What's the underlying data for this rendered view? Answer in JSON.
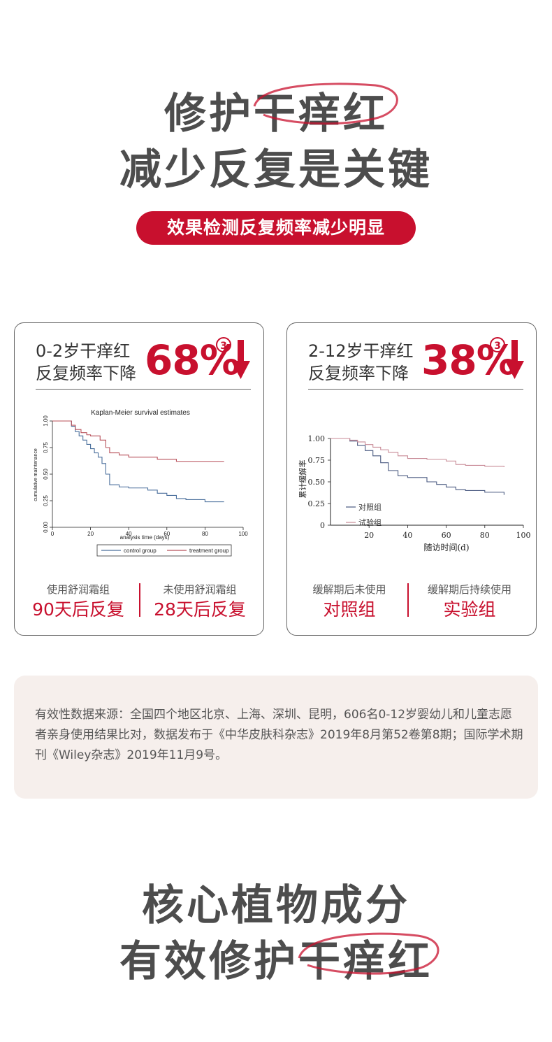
{
  "hero": {
    "line1": "修护干痒红",
    "line2": "减少反复是关键",
    "badge": "效果检测反复频率减少明显"
  },
  "cards": [
    {
      "head_line1": "0-2岁干痒红",
      "head_line2": "反复频率下降",
      "percent": "68%",
      "sup": "3",
      "foot_left_label": "使用舒润霜组",
      "foot_left_value": "90天后反复",
      "foot_right_label": "未使用舒润霜组",
      "foot_right_value": "28天后反复"
    },
    {
      "head_line1": "2-12岁干痒红",
      "head_line2": "反复频率下降",
      "percent": "38%",
      "sup": "3",
      "foot_left_label": "缓解期后未使用",
      "foot_left_value": "对照组",
      "foot_right_label": "缓解期后持续使用",
      "foot_right_value": "实验组"
    }
  ],
  "chart_data": [
    {
      "type": "line",
      "title": "Kaplan-Meier survival estimates",
      "xlabel": "analysis time (days)",
      "ylabel": "cumulative maintenance",
      "xlim": [
        0,
        100
      ],
      "ylim": [
        0,
        1
      ],
      "x_ticks": [
        "0",
        "20",
        "40",
        "60",
        "80",
        "100"
      ],
      "y_ticks": [
        "0.00",
        "0.25",
        "0.50",
        "0.75",
        "1.00"
      ],
      "legend_position": "bottom",
      "series": [
        {
          "name": "control group",
          "color": "#4a6f9c",
          "x": [
            0,
            8,
            10,
            12,
            14,
            16,
            18,
            20,
            22,
            24,
            26,
            28,
            30,
            35,
            40,
            50,
            55,
            60,
            65,
            70,
            80,
            90
          ],
          "y": [
            1.0,
            1.0,
            0.95,
            0.9,
            0.86,
            0.82,
            0.78,
            0.74,
            0.7,
            0.66,
            0.6,
            0.5,
            0.4,
            0.38,
            0.37,
            0.35,
            0.32,
            0.3,
            0.27,
            0.26,
            0.24,
            0.24
          ]
        },
        {
          "name": "treatment group",
          "color": "#b8505a",
          "x": [
            0,
            8,
            10,
            12,
            15,
            18,
            20,
            25,
            28,
            30,
            35,
            40,
            50,
            55,
            60,
            65,
            70,
            80,
            90
          ],
          "y": [
            1.0,
            1.0,
            0.96,
            0.92,
            0.89,
            0.87,
            0.86,
            0.82,
            0.75,
            0.7,
            0.68,
            0.66,
            0.66,
            0.64,
            0.64,
            0.62,
            0.62,
            0.62,
            0.62
          ]
        }
      ]
    },
    {
      "type": "line",
      "title": "",
      "xlabel": "随访时间(d)",
      "ylabel": "累计缓解率",
      "xlim": [
        0,
        100
      ],
      "ylim": [
        0,
        1
      ],
      "x_ticks": [
        "20",
        "40",
        "60",
        "80",
        "100"
      ],
      "y_ticks": [
        "0",
        "0.25",
        "0.50",
        "0.75",
        "1.00"
      ],
      "legend_position": "bottom-left",
      "series": [
        {
          "name": "对照组",
          "color": "#4a5a80",
          "x": [
            0,
            8,
            10,
            14,
            18,
            22,
            26,
            30,
            35,
            40,
            50,
            55,
            60,
            65,
            70,
            80,
            90
          ],
          "y": [
            1.0,
            1.0,
            0.97,
            0.92,
            0.86,
            0.8,
            0.72,
            0.63,
            0.57,
            0.55,
            0.5,
            0.47,
            0.44,
            0.41,
            0.4,
            0.38,
            0.35
          ]
        },
        {
          "name": "试验组",
          "color": "#c88a96",
          "x": [
            0,
            8,
            10,
            14,
            18,
            22,
            26,
            30,
            35,
            40,
            50,
            55,
            60,
            65,
            70,
            80,
            90
          ],
          "y": [
            1.0,
            1.0,
            0.98,
            0.96,
            0.93,
            0.9,
            0.87,
            0.84,
            0.8,
            0.77,
            0.76,
            0.76,
            0.74,
            0.7,
            0.69,
            0.68,
            0.67
          ]
        }
      ]
    }
  ],
  "source": {
    "text": "有效性数据来源：全国四个地区北京、上海、深圳、昆明，606名0-12岁婴幼儿和儿童志愿者亲身使用结果比对，数据发布于《中华皮肤科杂志》2019年8月第52卷第8期；国际学术期刊《Wiley杂志》2019年11月9号。"
  },
  "footer": {
    "line1": "核心植物成分",
    "line2": "有效修护干痒红"
  },
  "colors": {
    "accent": "#c8102e",
    "heading": "#4d4d4d",
    "source_bg": "#f6efec"
  }
}
